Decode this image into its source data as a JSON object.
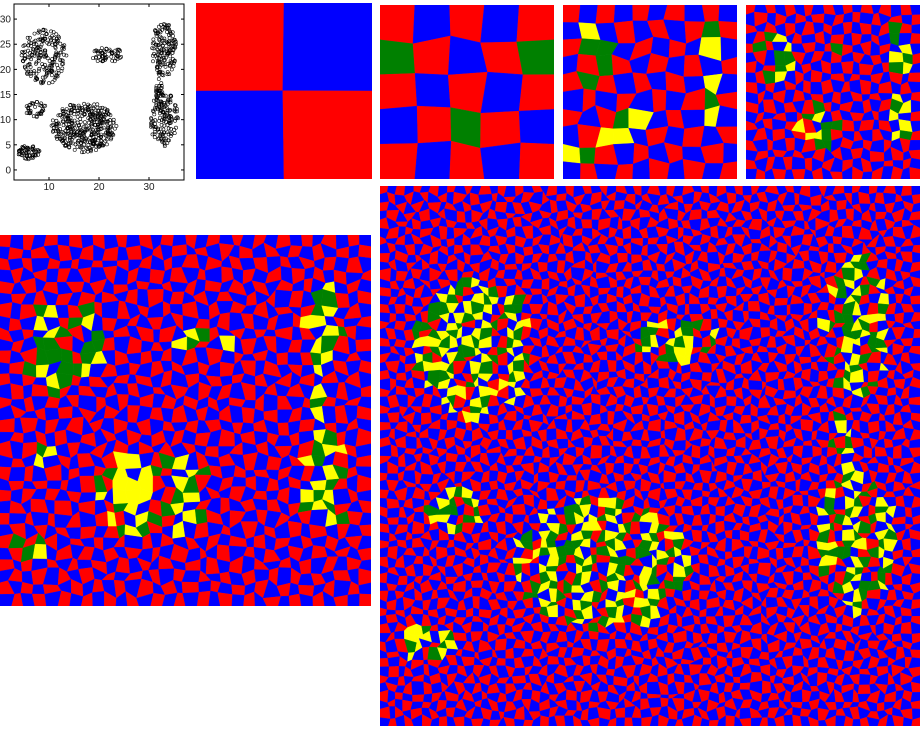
{
  "chart_data": {
    "type": "scatter",
    "xlim": [
      3,
      37
    ],
    "ylim": [
      -2,
      33
    ],
    "x_ticks": [
      10,
      20,
      30
    ],
    "y_ticks": [
      0,
      5,
      10,
      15,
      20,
      25,
      30
    ],
    "grid": false,
    "clusters": [
      {
        "cx": 9,
        "cy": 22.5,
        "rx": 4.5,
        "ry": 5.5,
        "n": 200
      },
      {
        "cx": 21.5,
        "cy": 23,
        "rx": 3.2,
        "ry": 1.6,
        "n": 55
      },
      {
        "cx": 33,
        "cy": 24,
        "rx": 2.5,
        "ry": 5.5,
        "n": 150
      },
      {
        "cx": 33,
        "cy": 10,
        "rx": 2.8,
        "ry": 5.5,
        "n": 150
      },
      {
        "cx": 32,
        "cy": 16,
        "rx": 0.7,
        "ry": 3,
        "n": 25
      },
      {
        "cx": 7.5,
        "cy": 12,
        "rx": 2.2,
        "ry": 1.6,
        "n": 35
      },
      {
        "cx": 17,
        "cy": 8.5,
        "rx": 6.5,
        "ry": 5,
        "n": 380
      },
      {
        "cx": 6,
        "cy": 3.5,
        "rx": 2.2,
        "ry": 1.4,
        "n": 60
      }
    ]
  },
  "palette": {
    "red": "#ff0000",
    "blue": "#0000ff",
    "green": "#008000",
    "yellow": "#ffff00"
  },
  "tilings": [
    {
      "name": "tiling-2x2",
      "grid": 2,
      "jitter": 0.03,
      "four_color": false
    },
    {
      "name": "tiling-5x5",
      "grid": 5,
      "jitter": 0.12,
      "four_color": true
    },
    {
      "name": "tiling-10x10",
      "grid": 10,
      "jitter": 0.25,
      "four_color": true
    },
    {
      "name": "tiling-18x18",
      "grid": 18,
      "jitter": 0.32,
      "four_color": true
    },
    {
      "name": "tiling-32x32",
      "grid": 32,
      "jitter": 0.34,
      "four_color": true
    },
    {
      "name": "tiling-64x64",
      "grid": 64,
      "jitter": 0.38,
      "four_color": true
    }
  ]
}
